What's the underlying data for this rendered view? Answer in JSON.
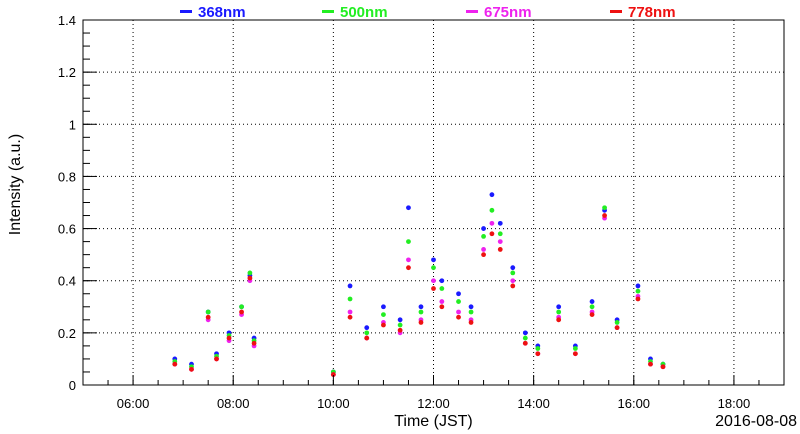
{
  "chart_data": {
    "type": "scatter",
    "title": "",
    "xlabel": "Time (JST)",
    "ylabel": "Intensity (a.u.)",
    "date_label": "2016-08-08",
    "xlim": [
      "05:00",
      "19:00"
    ],
    "ylim": [
      0,
      1.4
    ],
    "grid": true,
    "legend_position": "top",
    "x_ticks": [
      "06:00",
      "08:00",
      "10:00",
      "12:00",
      "14:00",
      "16:00",
      "18:00"
    ],
    "y_ticks": [
      "0",
      "0.2",
      "0.4",
      "0.6",
      "0.8",
      "1",
      "1.2",
      "1.4"
    ],
    "series": [
      {
        "name": "368nm",
        "color": "#1a1aff",
        "x": [
          "06:50",
          "07:10",
          "07:30",
          "07:40",
          "07:55",
          "08:10",
          "08:20",
          "08:25",
          "10:00",
          "10:20",
          "10:40",
          "11:00",
          "11:20",
          "11:30",
          "11:45",
          "12:00",
          "12:10",
          "12:30",
          "12:45",
          "13:00",
          "13:10",
          "13:20",
          "13:35",
          "13:50",
          "14:05",
          "14:30",
          "14:50",
          "15:10",
          "15:25",
          "15:40",
          "16:05",
          "16:20",
          "16:35"
        ],
        "y": [
          0.1,
          0.08,
          0.28,
          0.12,
          0.2,
          0.3,
          0.42,
          0.18,
          0.05,
          0.38,
          0.22,
          0.3,
          0.25,
          0.68,
          0.3,
          0.48,
          0.4,
          0.35,
          0.3,
          0.6,
          0.73,
          0.62,
          0.45,
          0.2,
          0.15,
          0.3,
          0.15,
          0.32,
          0.67,
          0.25,
          0.38,
          0.1,
          0.08
        ]
      },
      {
        "name": "500nm",
        "color": "#22ee22",
        "x": [
          "06:50",
          "07:10",
          "07:30",
          "07:40",
          "07:55",
          "08:10",
          "08:20",
          "08:25",
          "10:00",
          "10:20",
          "10:40",
          "11:00",
          "11:20",
          "11:30",
          "11:45",
          "12:00",
          "12:10",
          "12:30",
          "12:45",
          "13:00",
          "13:10",
          "13:20",
          "13:35",
          "13:50",
          "14:05",
          "14:30",
          "14:50",
          "15:10",
          "15:25",
          "15:40",
          "16:05",
          "16:20",
          "16:35"
        ],
        "y": [
          0.09,
          0.07,
          0.28,
          0.11,
          0.19,
          0.3,
          0.43,
          0.17,
          0.05,
          0.33,
          0.2,
          0.27,
          0.23,
          0.55,
          0.28,
          0.45,
          0.37,
          0.32,
          0.28,
          0.57,
          0.67,
          0.58,
          0.43,
          0.18,
          0.14,
          0.28,
          0.14,
          0.3,
          0.68,
          0.24,
          0.36,
          0.09,
          0.08
        ]
      },
      {
        "name": "675nm",
        "color": "#ee22ee",
        "x": [
          "06:50",
          "07:10",
          "07:30",
          "07:40",
          "07:55",
          "08:10",
          "08:20",
          "08:25",
          "10:00",
          "10:20",
          "10:40",
          "11:00",
          "11:20",
          "11:30",
          "11:45",
          "12:00",
          "12:10",
          "12:30",
          "12:45",
          "13:00",
          "13:10",
          "13:20",
          "13:35",
          "13:50",
          "14:05",
          "14:30",
          "14:50",
          "15:10",
          "15:25",
          "15:40",
          "16:05",
          "16:20",
          "16:35"
        ],
        "y": [
          0.08,
          0.06,
          0.25,
          0.1,
          0.17,
          0.27,
          0.4,
          0.15,
          0.04,
          0.28,
          0.18,
          0.24,
          0.2,
          0.48,
          0.25,
          0.4,
          0.32,
          0.28,
          0.25,
          0.52,
          0.62,
          0.55,
          0.4,
          0.16,
          0.12,
          0.26,
          0.12,
          0.28,
          0.64,
          0.22,
          0.34,
          0.08,
          0.07
        ]
      },
      {
        "name": "778nm",
        "color": "#ee1111",
        "x": [
          "06:50",
          "07:10",
          "07:30",
          "07:40",
          "07:55",
          "08:10",
          "08:20",
          "08:25",
          "10:00",
          "10:20",
          "10:40",
          "11:00",
          "11:20",
          "11:30",
          "11:45",
          "12:00",
          "12:10",
          "12:30",
          "12:45",
          "13:00",
          "13:10",
          "13:20",
          "13:35",
          "13:50",
          "14:05",
          "14:30",
          "14:50",
          "15:10",
          "15:25",
          "15:40",
          "16:05",
          "16:20",
          "16:35"
        ],
        "y": [
          0.08,
          0.06,
          0.26,
          0.1,
          0.18,
          0.28,
          0.41,
          0.16,
          0.04,
          0.26,
          0.18,
          0.23,
          0.21,
          0.45,
          0.24,
          0.37,
          0.3,
          0.26,
          0.24,
          0.5,
          0.58,
          0.52,
          0.38,
          0.16,
          0.12,
          0.25,
          0.12,
          0.27,
          0.65,
          0.22,
          0.33,
          0.08,
          0.07
        ]
      }
    ]
  }
}
